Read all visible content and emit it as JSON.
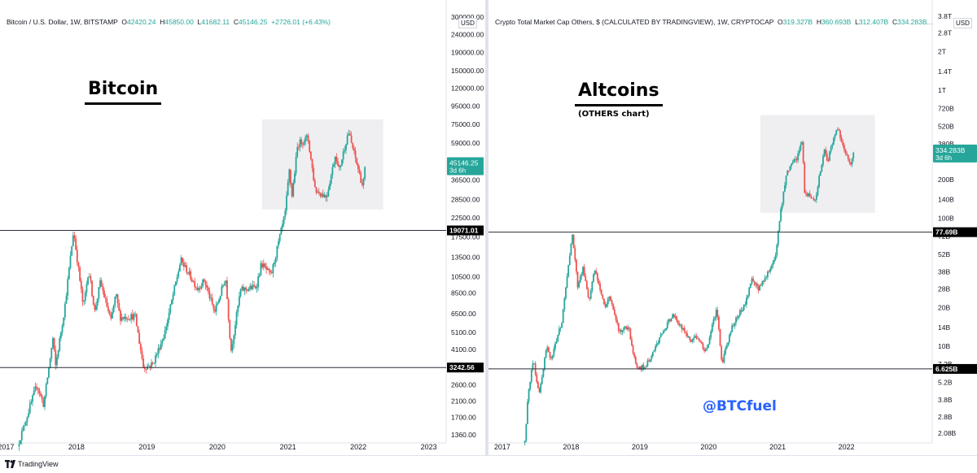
{
  "footer": {
    "brand": "TradingView",
    "logo_icon": "tradingview-logo-icon"
  },
  "colors": {
    "up": "#26a69a",
    "down": "#ef5350",
    "last_price_tag": "#26a69a",
    "level_tag": "#000000",
    "box": "#e9e9ee",
    "watermark": "#2962ff"
  },
  "annotations": {
    "watermark": "@BTCfuel"
  },
  "chart_data": [
    {
      "type": "candlestick",
      "title": "Bitcoin / U.S. Dollar, 1W, BITSTAMP",
      "heading": "Bitcoin",
      "subheading": "",
      "ohlc": {
        "o_label": "O",
        "o": "42420.24",
        "h_label": "H",
        "h": "45850.00",
        "l_label": "L",
        "l": "41682.11",
        "c_label": "C",
        "c": "45146.25",
        "change": "+2726.01 (+6.43%)"
      },
      "currency": "USD",
      "y_scale": "log",
      "ylim": [
        1250,
        310000
      ],
      "y_ticks": [
        {
          "v": 1360,
          "label": "1360.00"
        },
        {
          "v": 1700,
          "label": "1700.00"
        },
        {
          "v": 2100,
          "label": "2100.00"
        },
        {
          "v": 2600,
          "label": "2600.00"
        },
        {
          "v": 4100,
          "label": "4100.00"
        },
        {
          "v": 5100,
          "label": "5100.00"
        },
        {
          "v": 6500,
          "label": "6500.00"
        },
        {
          "v": 8500,
          "label": "8500.00"
        },
        {
          "v": 10500,
          "label": "10500.00"
        },
        {
          "v": 13500,
          "label": "13500.00"
        },
        {
          "v": 17500,
          "label": "17500.00"
        },
        {
          "v": 22500,
          "label": "22500.00"
        },
        {
          "v": 28500,
          "label": "28500.00"
        },
        {
          "v": 36500,
          "label": "36500.00"
        },
        {
          "v": 59000,
          "label": "59000.00"
        },
        {
          "v": 75000,
          "label": "75000.00"
        },
        {
          "v": 95000,
          "label": "95000.00"
        },
        {
          "v": 120000,
          "label": "120000.00"
        },
        {
          "v": 150000,
          "label": "150000.00"
        },
        {
          "v": 190000,
          "label": "190000.00"
        },
        {
          "v": 240000,
          "label": "240000.00"
        },
        {
          "v": 300000,
          "label": "300000.00"
        }
      ],
      "x_ticks": [
        "2017",
        "2018",
        "2019",
        "2020",
        "2021",
        "2022",
        "2023"
      ],
      "x_range": [
        "2016-12-01",
        "2023-04-01"
      ],
      "levels": [
        {
          "v": 19071.01,
          "label": "19071.01"
        },
        {
          "v": 3242.56,
          "label": "3242.56"
        }
      ],
      "last_price": {
        "v": 45146.25,
        "label": "45146.25",
        "countdown": "3d 6h"
      },
      "box": {
        "x0": "2020-08-20",
        "x1": "2022-05-10",
        "y0": 25000,
        "y1": 80000
      },
      "anchors": [
        [
          "2017-03-10",
          1250
        ],
        [
          "2017-06-10",
          2600
        ],
        [
          "2017-07-15",
          2000
        ],
        [
          "2017-09-01",
          4700
        ],
        [
          "2017-09-15",
          3300
        ],
        [
          "2017-11-01",
          7000
        ],
        [
          "2017-12-17",
          19071
        ],
        [
          "2018-02-06",
          7000
        ],
        [
          "2018-03-05",
          11500
        ],
        [
          "2018-04-06",
          6700
        ],
        [
          "2018-05-05",
          9800
        ],
        [
          "2018-06-29",
          5900
        ],
        [
          "2018-07-24",
          8400
        ],
        [
          "2018-08-15",
          6200
        ],
        [
          "2018-11-01",
          6300
        ],
        [
          "2018-12-15",
          3242
        ],
        [
          "2019-02-01",
          3400
        ],
        [
          "2019-04-02",
          5000
        ],
        [
          "2019-06-26",
          13000
        ],
        [
          "2019-09-20",
          9000
        ],
        [
          "2019-10-26",
          10000
        ],
        [
          "2019-12-18",
          6600
        ],
        [
          "2020-02-13",
          10400
        ],
        [
          "2020-03-12",
          4000
        ],
        [
          "2020-04-30",
          8800
        ],
        [
          "2020-07-20",
          9200
        ],
        [
          "2020-08-17",
          12400
        ],
        [
          "2020-10-05",
          10600
        ],
        [
          "2020-12-17",
          23500
        ],
        [
          "2021-01-08",
          41000
        ],
        [
          "2021-01-22",
          30000
        ],
        [
          "2021-02-21",
          58000
        ],
        [
          "2021-04-14",
          63500
        ],
        [
          "2021-05-23",
          32000
        ],
        [
          "2021-07-20",
          29500
        ],
        [
          "2021-09-06",
          52000
        ],
        [
          "2021-09-21",
          40500
        ],
        [
          "2021-11-10",
          68500
        ],
        [
          "2022-01-24",
          33500
        ],
        [
          "2022-02-08",
          45146
        ]
      ]
    },
    {
      "type": "candlestick",
      "title": "Crypto Total Market Cap Others, $ (CALCULATED BY TRADINGVIEW), 1W, CRYPTOCAP",
      "heading": "Altcoins",
      "subheading": "(OTHERS chart)",
      "ohlc": {
        "o_label": "O",
        "o": "319.327B",
        "h_label": "H",
        "h": "360.693B",
        "l_label": "L",
        "l": "312.407B",
        "c_label": "C",
        "c": "334.283B",
        "change": "..."
      },
      "currency": "USD",
      "y_scale": "log",
      "ylim": [
        1.8,
        3900
      ],
      "y_ticks": [
        {
          "v": 2.08,
          "label": "2.08B"
        },
        {
          "v": 2.8,
          "label": "2.8B"
        },
        {
          "v": 3.8,
          "label": "3.8B"
        },
        {
          "v": 5.2,
          "label": "5.2B"
        },
        {
          "v": 7.2,
          "label": "7.2B"
        },
        {
          "v": 10,
          "label": "10B"
        },
        {
          "v": 14,
          "label": "14B"
        },
        {
          "v": 20,
          "label": "20B"
        },
        {
          "v": 28,
          "label": "28B"
        },
        {
          "v": 38,
          "label": "38B"
        },
        {
          "v": 52,
          "label": "52B"
        },
        {
          "v": 72,
          "label": "72B"
        },
        {
          "v": 100,
          "label": "100B"
        },
        {
          "v": 140,
          "label": "140B"
        },
        {
          "v": 200,
          "label": "200B"
        },
        {
          "v": 380,
          "label": "380B"
        },
        {
          "v": 520,
          "label": "520B"
        },
        {
          "v": 720,
          "label": "720B"
        },
        {
          "v": 1000,
          "label": "1T"
        },
        {
          "v": 1400,
          "label": "1.4T"
        },
        {
          "v": 2000,
          "label": "2T"
        },
        {
          "v": 2800,
          "label": "2.8T"
        },
        {
          "v": 3800,
          "label": "3.8T"
        }
      ],
      "x_ticks": [
        "2017",
        "2018",
        "2019",
        "2020",
        "2021",
        "2022"
      ],
      "x_range": [
        "2016-10-20",
        "2023-04-01"
      ],
      "levels": [
        {
          "v": 77.69,
          "label": "77.69B"
        },
        {
          "v": 6.625,
          "label": "6.625B"
        }
      ],
      "last_price": {
        "v": 334.283,
        "label": "334.283B",
        "countdown": "3d 6h"
      },
      "box": {
        "x0": "2020-10-01",
        "x1": "2022-06-01",
        "y0": 110,
        "y1": 640
      },
      "anchors": [
        [
          "2017-05-01",
          1.8
        ],
        [
          "2017-05-20",
          4.5
        ],
        [
          "2017-06-15",
          7.8
        ],
        [
          "2017-07-15",
          4.2
        ],
        [
          "2017-08-25",
          10
        ],
        [
          "2017-09-15",
          7.5
        ],
        [
          "2017-11-15",
          16
        ],
        [
          "2018-01-07",
          77.69
        ],
        [
          "2018-02-06",
          28
        ],
        [
          "2018-03-05",
          42
        ],
        [
          "2018-04-06",
          22
        ],
        [
          "2018-05-05",
          40
        ],
        [
          "2018-06-29",
          20
        ],
        [
          "2018-07-24",
          25
        ],
        [
          "2018-09-12",
          13
        ],
        [
          "2018-11-01",
          14
        ],
        [
          "2018-12-15",
          6.625
        ],
        [
          "2019-02-01",
          7
        ],
        [
          "2019-04-10",
          11
        ],
        [
          "2019-06-26",
          18
        ],
        [
          "2019-09-25",
          11
        ],
        [
          "2019-10-26",
          12
        ],
        [
          "2019-12-18",
          9
        ],
        [
          "2020-02-13",
          20
        ],
        [
          "2020-03-12",
          7.2
        ],
        [
          "2020-05-01",
          14
        ],
        [
          "2020-07-15",
          22
        ],
        [
          "2020-08-17",
          34
        ],
        [
          "2020-09-20",
          28
        ],
        [
          "2020-11-20",
          40
        ],
        [
          "2020-12-20",
          50
        ],
        [
          "2021-01-15",
          110
        ],
        [
          "2021-02-20",
          230
        ],
        [
          "2021-04-15",
          300
        ],
        [
          "2021-05-12",
          420
        ],
        [
          "2021-05-23",
          160
        ],
        [
          "2021-07-20",
          140
        ],
        [
          "2021-09-06",
          350
        ],
        [
          "2021-09-21",
          270
        ],
        [
          "2021-11-10",
          520
        ],
        [
          "2022-01-24",
          255
        ],
        [
          "2022-02-08",
          334.283
        ]
      ]
    }
  ]
}
